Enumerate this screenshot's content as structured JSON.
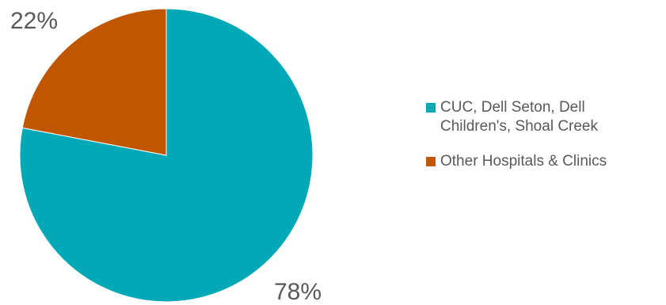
{
  "chart_data": {
    "type": "pie",
    "title": "",
    "start_angle_deg": 0,
    "direction": "clockwise",
    "legend_position": "right",
    "slices": [
      {
        "name": "CUC, Dell Seton, Dell\nChildren's, Shoal Creek",
        "value": 78,
        "label": "78%",
        "color": "#00A9B5"
      },
      {
        "name": "Other Hospitals & Clinics",
        "value": 22,
        "label": "22%",
        "color": "#C05600"
      }
    ]
  }
}
